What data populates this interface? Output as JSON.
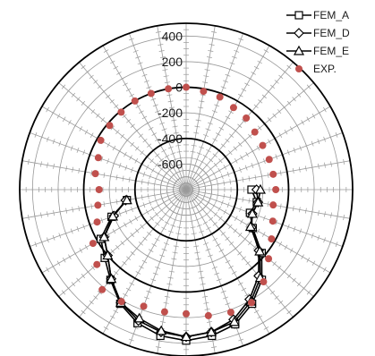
{
  "chart_data": {
    "type": "polar",
    "angle_unit": "degrees",
    "radial_axis": {
      "min": -800,
      "max": 500,
      "ticks": [
        400,
        200,
        0,
        -200,
        -400,
        -600
      ],
      "tick_labels": [
        "400",
        "200",
        "0",
        "-200",
        "-400",
        "-600"
      ],
      "bold_rings": [
        0,
        -400
      ]
    },
    "spokes": 36,
    "minor_ticks_on_spokes": true,
    "legend": {
      "position": "top-right"
    },
    "angles": [
      0,
      10,
      20,
      30,
      40,
      50,
      60,
      70,
      80,
      90,
      100,
      110,
      120,
      130,
      140,
      150,
      160,
      170,
      180,
      190,
      200,
      210,
      220,
      230,
      240,
      250,
      260,
      270,
      280,
      290,
      300,
      310,
      320,
      330,
      340,
      350
    ],
    "series": [
      {
        "name": "FEM_A",
        "marker": "square",
        "line_color": "#000000",
        "values": [
          -290,
          -240,
          -270,
          -200,
          -30,
          120,
          230,
          320,
          360,
          380,
          360,
          310,
          230,
          120,
          30,
          -30,
          -180,
          -330,
          null,
          null,
          null,
          null,
          null,
          null,
          null,
          null,
          null,
          null,
          null,
          null,
          null,
          null,
          null,
          null,
          null,
          null
        ]
      },
      {
        "name": "FEM_D",
        "marker": "diamond",
        "line_color": "#000000",
        "values": [
          -250,
          -230,
          -250,
          -210,
          -60,
          80,
          190,
          280,
          330,
          350,
          330,
          290,
          220,
          110,
          0,
          -60,
          -200,
          -320,
          null,
          null,
          null,
          null,
          null,
          null,
          null,
          null,
          null,
          null,
          null,
          null,
          null,
          null,
          null,
          null,
          null,
          null
        ]
      },
      {
        "name": "FEM_E",
        "marker": "triangle",
        "line_color": "#000000",
        "values": [
          -220,
          -230,
          -250,
          -220,
          -50,
          100,
          210,
          300,
          330,
          350,
          320,
          270,
          220,
          110,
          0,
          -60,
          -190,
          -330,
          null,
          null,
          null,
          null,
          null,
          null,
          null,
          null,
          null,
          null,
          null,
          null,
          null,
          null,
          null,
          null,
          null,
          null
        ]
      },
      {
        "name": "EXP.",
        "marker": "circle",
        "marker_color": "#c0504d",
        "values": [
          -100,
          -110,
          -80,
          -30,
          40,
          140,
          220,
          220,
          200,
          170,
          170,
          170,
          210,
          220,
          110,
          40,
          -60,
          -100,
          -120,
          -80,
          -70,
          -30,
          -20,
          -10,
          0,
          0,
          0,
          0,
          -20,
          -30,
          -60,
          -70,
          -100,
          -110,
          -110,
          -110
        ]
      }
    ]
  }
}
